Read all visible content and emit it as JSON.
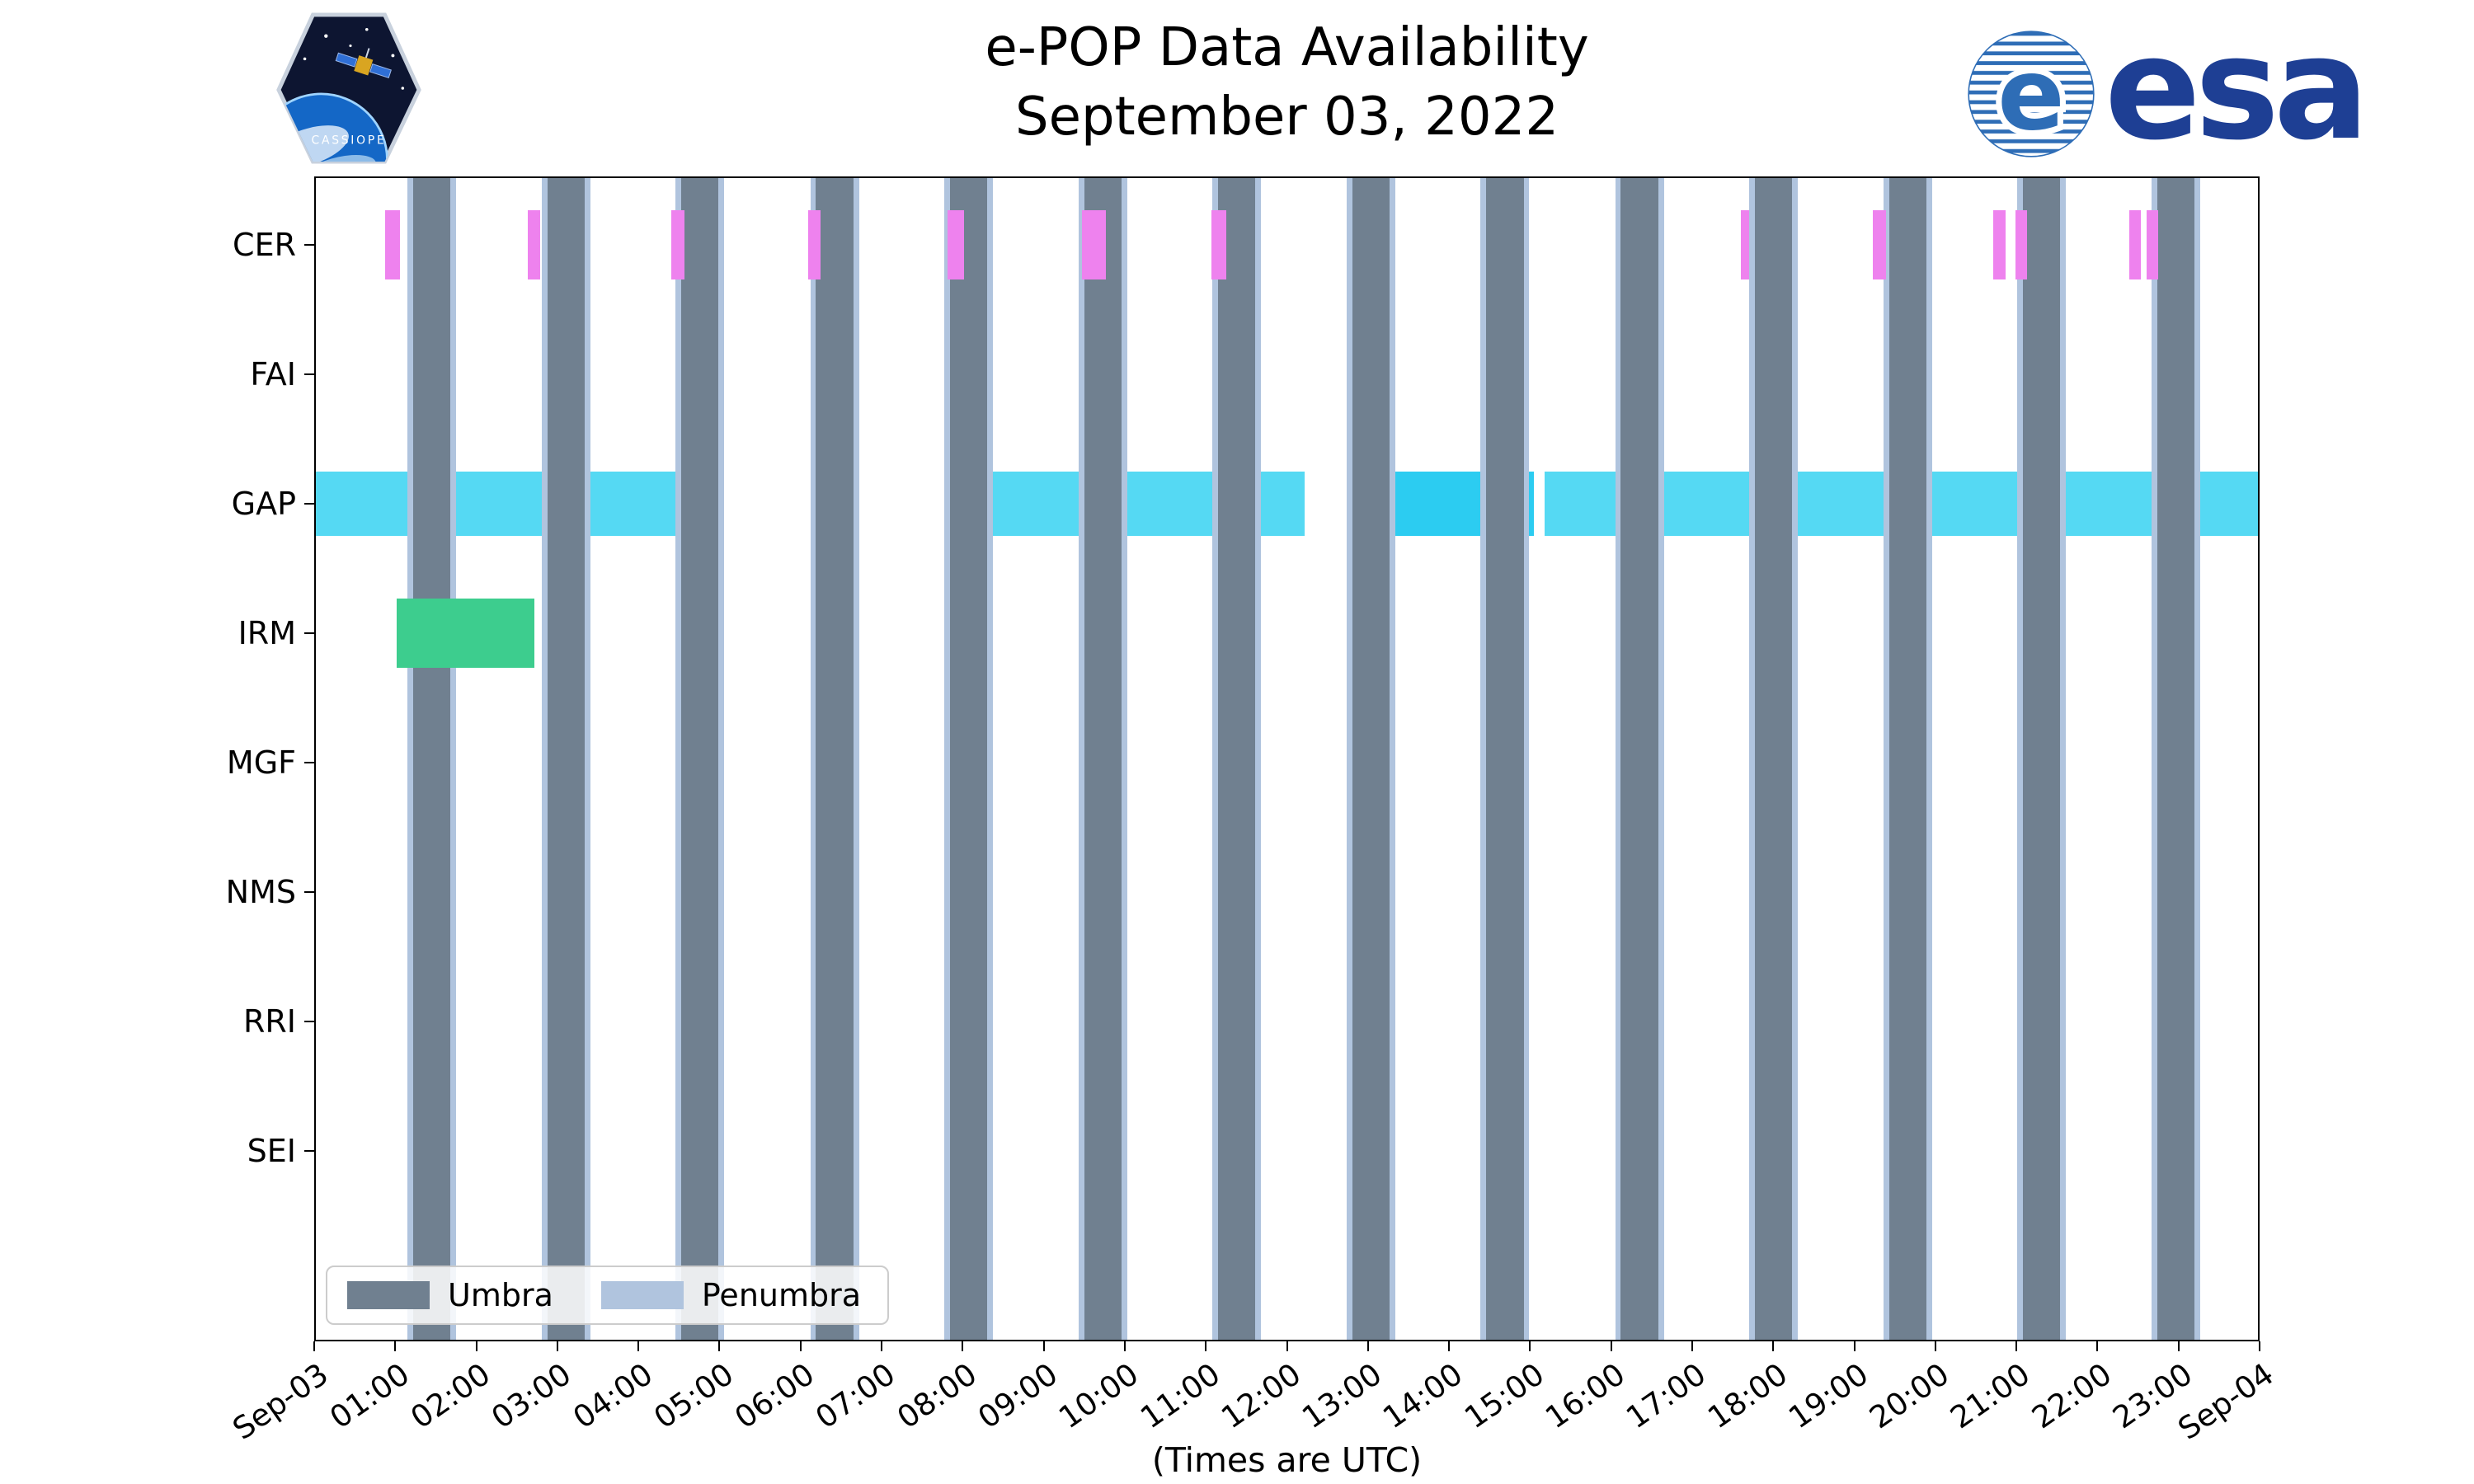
{
  "header": {
    "title": "e-POP Data Availability",
    "subtitle": "September 03, 2022",
    "esa_wordmark": "esa",
    "cassiope_text": "CASSIOPE"
  },
  "axis": {
    "xlabel": "(Times are UTC)",
    "x_ticks": [
      "Sep-03",
      "01:00",
      "02:00",
      "03:00",
      "04:00",
      "05:00",
      "06:00",
      "07:00",
      "08:00",
      "09:00",
      "10:00",
      "11:00",
      "12:00",
      "13:00",
      "14:00",
      "15:00",
      "16:00",
      "17:00",
      "18:00",
      "19:00",
      "20:00",
      "21:00",
      "22:00",
      "23:00",
      "Sep-04"
    ],
    "y_ticks": [
      "CER",
      "FAI",
      "GAP",
      "IRM",
      "MGF",
      "NMS",
      "RRI",
      "SEI"
    ]
  },
  "legend": {
    "items": [
      {
        "label": "Umbra",
        "color": "#708090"
      },
      {
        "label": "Penumbra",
        "color": "#b0c4de"
      }
    ]
  },
  "chart_data": {
    "type": "bar",
    "subtype": "availability-gantt-timeline",
    "title": "e-POP Data Availability",
    "subtitle": "September 03, 2022",
    "xlabel": "(Times are UTC)",
    "x_unit": "hours UTC on 2022-09-03",
    "x_range_hours": [
      0,
      24
    ],
    "grid": false,
    "rows": [
      "CER",
      "FAI",
      "GAP",
      "IRM",
      "MGF",
      "NMS",
      "RRI",
      "SEI"
    ],
    "series": [
      {
        "name": "CER",
        "color": "#ee82ee",
        "intervals": [
          [
            0.88,
            1.06
          ],
          [
            2.63,
            2.79
          ],
          [
            4.41,
            4.57
          ],
          [
            6.09,
            6.25
          ],
          [
            7.81,
            8.02
          ],
          [
            9.47,
            9.77
          ],
          [
            11.07,
            11.25
          ],
          [
            17.6,
            17.7
          ],
          [
            19.23,
            19.39
          ],
          [
            20.71,
            20.87
          ],
          [
            20.99,
            21.13
          ],
          [
            22.39,
            22.53
          ],
          [
            22.61,
            22.75
          ]
        ]
      },
      {
        "name": "FAI",
        "color": "#ee82ee",
        "intervals": []
      },
      {
        "name": "GAP",
        "color": "#55d9f3",
        "intervals": [
          [
            0.0,
            4.83
          ],
          [
            7.95,
            12.22
          ],
          [
            13.3,
            15.05
          ],
          [
            15.18,
            24.0
          ]
        ],
        "interval_colors": [
          "#55d9f3",
          "#55d9f3",
          "#2cccf1",
          "#55d9f3"
        ]
      },
      {
        "name": "IRM",
        "color": "#3dcd8e",
        "intervals": [
          [
            1.02,
            2.72
          ]
        ]
      },
      {
        "name": "MGF",
        "color": "#888888",
        "intervals": []
      },
      {
        "name": "NMS",
        "color": "#888888",
        "intervals": []
      },
      {
        "name": "RRI",
        "color": "#888888",
        "intervals": []
      },
      {
        "name": "SEI",
        "color": "#888888",
        "intervals": []
      }
    ],
    "umbra": {
      "label": "Umbra",
      "color": "#708090",
      "intervals": [
        [
          1.22,
          1.68
        ],
        [
          2.88,
          3.34
        ],
        [
          4.53,
          4.99
        ],
        [
          6.19,
          6.65
        ],
        [
          7.84,
          8.3
        ],
        [
          9.5,
          9.96
        ],
        [
          11.15,
          11.61
        ],
        [
          12.81,
          13.27
        ],
        [
          14.46,
          14.92
        ],
        [
          16.12,
          16.58
        ],
        [
          17.77,
          18.23
        ],
        [
          19.43,
          19.89
        ],
        [
          21.08,
          21.54
        ],
        [
          22.74,
          23.2
        ]
      ]
    },
    "penumbra": {
      "label": "Penumbra",
      "color": "#b0c4de",
      "edge_hours": 0.07
    },
    "legend_position": "lower left"
  }
}
